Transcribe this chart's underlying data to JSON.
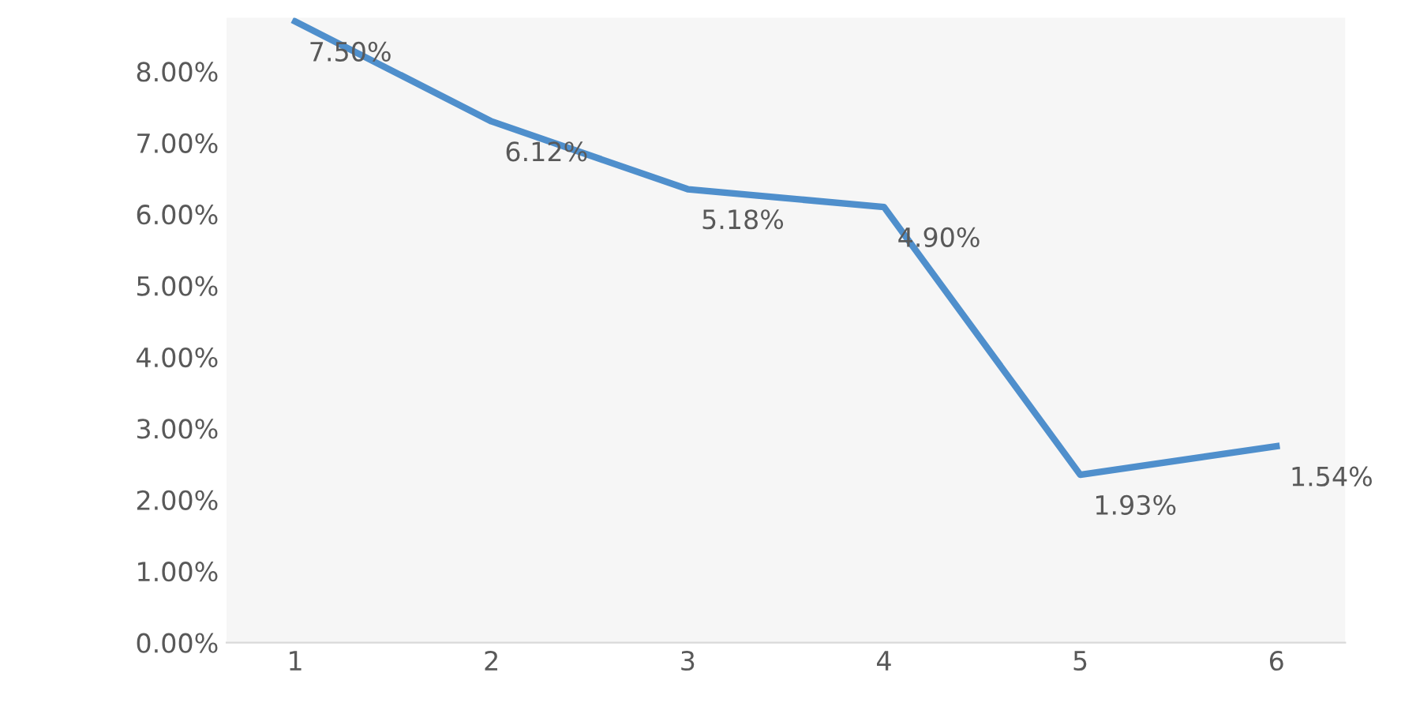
{
  "chart_data": {
    "type": "line",
    "categories": [
      "1",
      "2",
      "3",
      "4",
      "5",
      "6"
    ],
    "series": [
      {
        "color": "#4f8fcc",
        "values": [
          8.7,
          7.3,
          6.35,
          6.1,
          2.35,
          2.75
        ]
      }
    ],
    "annotations": [
      "7.50%",
      "6.12%",
      "5.18%",
      "4.90%",
      "1.93%",
      "1.54%"
    ],
    "ylim": [
      0,
      8.75
    ],
    "yticks": [
      {
        "value": 0,
        "label": "0.00%"
      },
      {
        "value": 1,
        "label": "1.00%"
      },
      {
        "value": 2,
        "label": "2.00%"
      },
      {
        "value": 3,
        "label": "3.00%"
      },
      {
        "value": 4,
        "label": "4.00%"
      },
      {
        "value": 5,
        "label": "5.00%"
      },
      {
        "value": 6,
        "label": "6.00%"
      },
      {
        "value": 7,
        "label": "7.00%"
      },
      {
        "value": 8,
        "label": "8.00%"
      }
    ],
    "grid": false,
    "legend": false,
    "marker": "none",
    "line_style": "solid"
  }
}
